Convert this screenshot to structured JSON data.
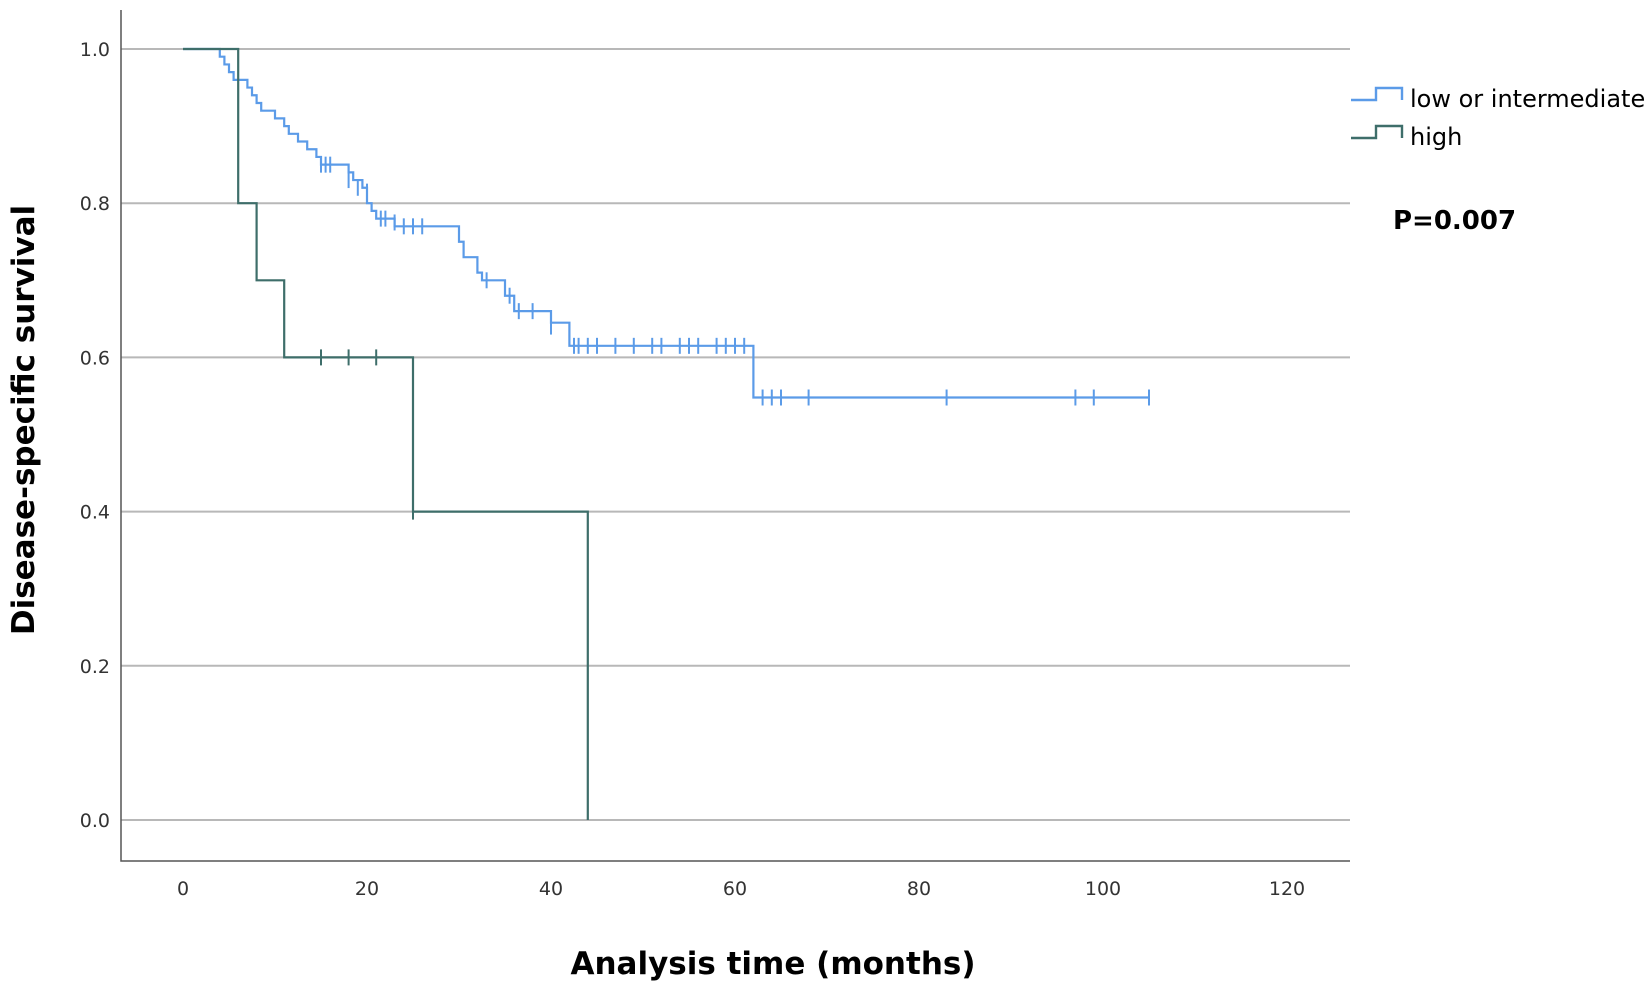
{
  "chart_data": {
    "type": "line",
    "subtype": "kaplan-meier step",
    "xlabel": "Analysis time (months)",
    "ylabel": "Disease-specific survival",
    "xlim": [
      0,
      120
    ],
    "ylim": [
      0,
      1.0
    ],
    "x_ticks": [
      0,
      20,
      40,
      60,
      80,
      100,
      120
    ],
    "y_ticks": [
      0.0,
      0.2,
      0.4,
      0.6,
      0.8,
      1.0
    ],
    "x_tick_labels": [
      "0",
      "20",
      "40",
      "60",
      "80",
      "100",
      "120"
    ],
    "y_tick_labels": [
      "0.0",
      "0.2",
      "0.4",
      "0.6",
      "0.8",
      "1.0"
    ],
    "grid": "horizontal",
    "legend_position": "top-right",
    "annotation": "P=0.007",
    "series": [
      {
        "name": "low or intermediate",
        "color": "#5b9be8",
        "steps": [
          [
            0,
            1.0
          ],
          [
            4,
            0.99
          ],
          [
            4.5,
            0.98
          ],
          [
            5,
            0.97
          ],
          [
            5.5,
            0.96
          ],
          [
            7,
            0.95
          ],
          [
            7.5,
            0.94
          ],
          [
            8,
            0.93
          ],
          [
            8.5,
            0.92
          ],
          [
            10,
            0.91
          ],
          [
            11,
            0.9
          ],
          [
            11.5,
            0.89
          ],
          [
            12.5,
            0.88
          ],
          [
            13.5,
            0.87
          ],
          [
            14.5,
            0.86
          ],
          [
            15,
            0.85
          ],
          [
            18,
            0.84
          ],
          [
            18.5,
            0.83
          ],
          [
            19.5,
            0.82
          ],
          [
            20,
            0.8
          ],
          [
            20.5,
            0.79
          ],
          [
            21,
            0.78
          ],
          [
            23,
            0.77
          ],
          [
            30,
            0.75
          ],
          [
            30.5,
            0.73
          ],
          [
            32,
            0.71
          ],
          [
            32.5,
            0.7
          ],
          [
            35,
            0.68
          ],
          [
            36,
            0.66
          ],
          [
            40,
            0.645
          ],
          [
            42,
            0.615
          ],
          [
            62,
            0.548
          ],
          [
            105,
            0.548
          ]
        ],
        "censored": [
          [
            15,
            0.85
          ],
          [
            15.5,
            0.85
          ],
          [
            16,
            0.85
          ],
          [
            18,
            0.83
          ],
          [
            19,
            0.82
          ],
          [
            20,
            0.815
          ],
          [
            21.5,
            0.78
          ],
          [
            22,
            0.78
          ],
          [
            23,
            0.775
          ],
          [
            24,
            0.77
          ],
          [
            25,
            0.77
          ],
          [
            26,
            0.77
          ],
          [
            33,
            0.7
          ],
          [
            35.5,
            0.68
          ],
          [
            36.5,
            0.66
          ],
          [
            38,
            0.66
          ],
          [
            40,
            0.64
          ],
          [
            42.5,
            0.615
          ],
          [
            43,
            0.615
          ],
          [
            44,
            0.615
          ],
          [
            45,
            0.615
          ],
          [
            47,
            0.615
          ],
          [
            49,
            0.615
          ],
          [
            51,
            0.615
          ],
          [
            52,
            0.615
          ],
          [
            54,
            0.615
          ],
          [
            55,
            0.615
          ],
          [
            56,
            0.615
          ],
          [
            58,
            0.615
          ],
          [
            59,
            0.615
          ],
          [
            60,
            0.615
          ],
          [
            61,
            0.615
          ],
          [
            63,
            0.548
          ],
          [
            64,
            0.548
          ],
          [
            65,
            0.548
          ],
          [
            68,
            0.548
          ],
          [
            83,
            0.548
          ],
          [
            97,
            0.548
          ],
          [
            99,
            0.548
          ],
          [
            105,
            0.548
          ]
        ]
      },
      {
        "name": "high",
        "color": "#3e6e6a",
        "steps": [
          [
            0,
            1.0
          ],
          [
            6,
            0.8
          ],
          [
            8,
            0.7
          ],
          [
            11,
            0.6
          ],
          [
            25,
            0.4
          ],
          [
            44,
            0.0
          ]
        ],
        "censored": [
          [
            15,
            0.6
          ],
          [
            18,
            0.6
          ],
          [
            21,
            0.6
          ],
          [
            25,
            0.4
          ]
        ]
      }
    ]
  }
}
